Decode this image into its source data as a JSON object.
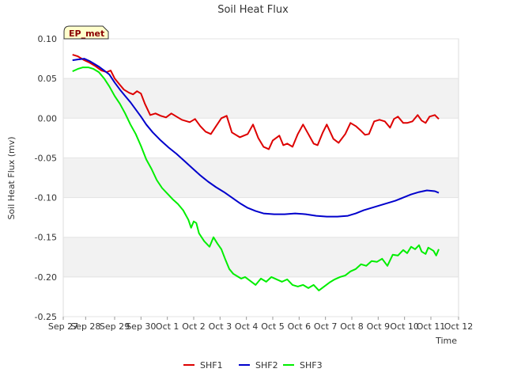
{
  "chart_data": {
    "type": "line",
    "title": "Soil Heat Flux",
    "xlabel": "Time",
    "ylabel": "Soil Heat Flux (mv)",
    "badge": "EP_met",
    "ylim": [
      -0.25,
      0.1
    ],
    "yticks": [
      0.1,
      0.05,
      0.0,
      -0.05,
      -0.1,
      -0.15,
      -0.2,
      -0.25
    ],
    "ytick_labels": [
      "0.10",
      "0.05",
      "0.00",
      "-0.05",
      "-0.10",
      "-0.15",
      "-0.20",
      "-0.25"
    ],
    "xlim": [
      0,
      15
    ],
    "xticks": [
      0,
      1,
      2,
      3,
      4,
      5,
      6,
      7,
      8,
      9,
      10,
      11,
      12,
      13,
      14,
      15
    ],
    "xtick_labels": [
      "Sep 27",
      "Sep 28",
      "Sep 29",
      "Sep 30",
      "Oct 1",
      "Oct 2",
      "Oct 3",
      "Oct 4",
      "Oct 5",
      "Oct 6",
      "Oct 7",
      "Oct 8",
      "Oct 9",
      "Oct 10",
      "Oct 11",
      "Oct 12"
    ],
    "x_tick_positions": [
      0,
      0.85,
      1.95,
      2.95,
      3.95,
      4.95,
      5.95,
      6.95,
      7.95,
      8.95,
      9.95,
      10.95,
      11.95,
      12.95,
      13.95,
      15
    ],
    "grid": true,
    "legend_position": "bottom",
    "series": [
      {
        "name": "SHF1",
        "color": "#dd0000",
        "x": [
          0.35,
          0.55,
          0.8,
          1.0,
          1.2,
          1.45,
          1.65,
          1.8,
          1.95,
          2.15,
          2.3,
          2.5,
          2.65,
          2.8,
          2.95,
          3.1,
          3.3,
          3.5,
          3.7,
          3.9,
          4.1,
          4.3,
          4.5,
          4.8,
          5.0,
          5.2,
          5.4,
          5.6,
          5.8,
          6.0,
          6.2,
          6.4,
          6.7,
          7.0,
          7.2,
          7.4,
          7.6,
          7.8,
          7.95,
          8.2,
          8.35,
          8.5,
          8.7,
          8.9,
          9.1,
          9.3,
          9.5,
          9.65,
          9.85,
          10.0,
          10.25,
          10.45,
          10.7,
          10.9,
          11.1,
          11.3,
          11.45,
          11.6,
          11.8,
          12.0,
          12.2,
          12.4,
          12.55,
          12.7,
          12.9,
          13.05,
          13.25,
          13.45,
          13.6,
          13.75,
          13.9,
          14.1,
          14.25
        ],
        "values": [
          0.08,
          0.078,
          0.073,
          0.07,
          0.066,
          0.06,
          0.058,
          0.06,
          0.05,
          0.042,
          0.036,
          0.032,
          0.03,
          0.034,
          0.031,
          0.018,
          0.004,
          0.006,
          0.003,
          0.001,
          0.006,
          0.002,
          -0.002,
          -0.005,
          -0.001,
          -0.01,
          -0.017,
          -0.02,
          -0.01,
          0.0,
          0.003,
          -0.018,
          -0.024,
          -0.02,
          -0.008,
          -0.025,
          -0.036,
          -0.039,
          -0.028,
          -0.022,
          -0.034,
          -0.032,
          -0.036,
          -0.02,
          -0.008,
          -0.02,
          -0.032,
          -0.034,
          -0.018,
          -0.008,
          -0.026,
          -0.031,
          -0.02,
          -0.006,
          -0.01,
          -0.016,
          -0.021,
          -0.02,
          -0.004,
          -0.002,
          -0.004,
          -0.012,
          -0.001,
          0.002,
          -0.006,
          -0.006,
          -0.004,
          0.004,
          -0.003,
          -0.006,
          0.002,
          0.004,
          -0.001
        ]
      },
      {
        "name": "SHF2",
        "color": "#0000cc",
        "x": [
          0.35,
          0.55,
          0.8,
          1.0,
          1.2,
          1.35,
          1.55,
          1.75,
          1.95,
          2.15,
          2.35,
          2.55,
          2.75,
          2.95,
          3.15,
          3.4,
          3.7,
          4.0,
          4.3,
          4.6,
          4.9,
          5.2,
          5.5,
          5.8,
          6.1,
          6.4,
          6.7,
          7.0,
          7.3,
          7.6,
          8.0,
          8.4,
          8.8,
          9.2,
          9.6,
          10.0,
          10.4,
          10.8,
          11.1,
          11.4,
          11.7,
          12.0,
          12.3,
          12.6,
          12.9,
          13.2,
          13.5,
          13.8,
          14.1,
          14.25
        ],
        "values": [
          0.073,
          0.074,
          0.075,
          0.072,
          0.068,
          0.065,
          0.06,
          0.055,
          0.045,
          0.036,
          0.028,
          0.02,
          0.011,
          0.002,
          -0.008,
          -0.018,
          -0.028,
          -0.037,
          -0.045,
          -0.054,
          -0.063,
          -0.072,
          -0.08,
          -0.087,
          -0.093,
          -0.1,
          -0.107,
          -0.113,
          -0.117,
          -0.12,
          -0.121,
          -0.121,
          -0.12,
          -0.121,
          -0.123,
          -0.124,
          -0.124,
          -0.123,
          -0.12,
          -0.116,
          -0.113,
          -0.11,
          -0.107,
          -0.104,
          -0.1,
          -0.096,
          -0.093,
          -0.091,
          -0.092,
          -0.094
        ]
      },
      {
        "name": "SHF3",
        "color": "#00ee00",
        "x": [
          0.35,
          0.55,
          0.75,
          0.95,
          1.15,
          1.35,
          1.55,
          1.75,
          1.95,
          2.15,
          2.35,
          2.55,
          2.75,
          2.95,
          3.15,
          3.35,
          3.55,
          3.75,
          3.95,
          4.15,
          4.35,
          4.55,
          4.75,
          4.85,
          4.95,
          5.05,
          5.15,
          5.35,
          5.55,
          5.7,
          5.85,
          6.0,
          6.15,
          6.3,
          6.45,
          6.6,
          6.75,
          6.9,
          7.1,
          7.3,
          7.5,
          7.7,
          7.9,
          8.1,
          8.3,
          8.5,
          8.7,
          8.9,
          9.1,
          9.3,
          9.5,
          9.7,
          9.9,
          10.1,
          10.3,
          10.5,
          10.7,
          10.9,
          11.1,
          11.3,
          11.5,
          11.7,
          11.9,
          12.1,
          12.3,
          12.5,
          12.7,
          12.9,
          13.05,
          13.2,
          13.35,
          13.5,
          13.6,
          13.75,
          13.85,
          13.95,
          14.05,
          14.15,
          14.25
        ],
        "values": [
          0.059,
          0.062,
          0.064,
          0.064,
          0.062,
          0.058,
          0.05,
          0.04,
          0.028,
          0.018,
          0.006,
          -0.008,
          -0.02,
          -0.035,
          -0.052,
          -0.064,
          -0.078,
          -0.088,
          -0.095,
          -0.102,
          -0.108,
          -0.116,
          -0.128,
          -0.138,
          -0.13,
          -0.132,
          -0.145,
          -0.155,
          -0.162,
          -0.15,
          -0.158,
          -0.165,
          -0.178,
          -0.19,
          -0.196,
          -0.199,
          -0.202,
          -0.2,
          -0.205,
          -0.21,
          -0.202,
          -0.206,
          -0.2,
          -0.203,
          -0.206,
          -0.203,
          -0.21,
          -0.212,
          -0.21,
          -0.214,
          -0.21,
          -0.217,
          -0.212,
          -0.207,
          -0.203,
          -0.2,
          -0.198,
          -0.193,
          -0.19,
          -0.184,
          -0.186,
          -0.18,
          -0.181,
          -0.177,
          -0.186,
          -0.172,
          -0.173,
          -0.166,
          -0.17,
          -0.162,
          -0.165,
          -0.16,
          -0.168,
          -0.171,
          -0.163,
          -0.165,
          -0.167,
          -0.173,
          -0.165
        ]
      }
    ]
  }
}
